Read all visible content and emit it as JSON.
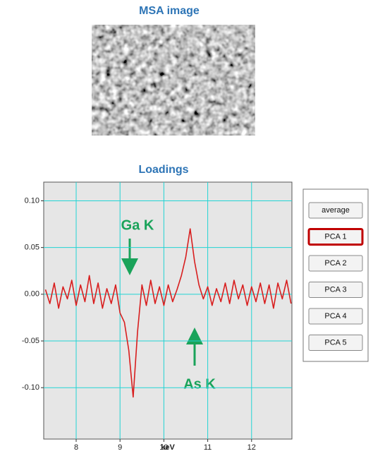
{
  "image_title": "MSA image",
  "chart_data": {
    "type": "line",
    "title": "Loadings",
    "x_label": "keV",
    "x": [
      7.3,
      7.4,
      7.5,
      7.6,
      7.7,
      7.8,
      7.9,
      8.0,
      8.1,
      8.2,
      8.3,
      8.4,
      8.5,
      8.6,
      8.7,
      8.8,
      8.9,
      9.0,
      9.1,
      9.2,
      9.3,
      9.4,
      9.5,
      9.6,
      9.7,
      9.8,
      9.9,
      10.0,
      10.1,
      10.2,
      10.3,
      10.4,
      10.5,
      10.6,
      10.7,
      10.8,
      10.9,
      11.0,
      11.1,
      11.2,
      11.3,
      11.4,
      11.5,
      11.6,
      11.7,
      11.8,
      11.9,
      12.0,
      12.1,
      12.2,
      12.3,
      12.4,
      12.5,
      12.6,
      12.7,
      12.8,
      12.9
    ],
    "values": [
      0.005,
      -0.01,
      0.012,
      -0.015,
      0.008,
      -0.005,
      0.015,
      -0.012,
      0.01,
      -0.008,
      0.02,
      -0.01,
      0.012,
      -0.015,
      0.006,
      -0.01,
      0.01,
      -0.02,
      -0.03,
      -0.06,
      -0.11,
      -0.04,
      0.01,
      -0.012,
      0.015,
      -0.01,
      0.008,
      -0.012,
      0.01,
      -0.008,
      0.005,
      0.02,
      0.04,
      0.07,
      0.035,
      0.01,
      -0.005,
      0.008,
      -0.012,
      0.006,
      -0.008,
      0.012,
      -0.01,
      0.015,
      -0.005,
      0.01,
      -0.012,
      0.008,
      -0.008,
      0.012,
      -0.01,
      0.01,
      -0.015,
      0.012,
      -0.005,
      0.015,
      -0.01
    ],
    "color": "#d81e1e",
    "xlim": [
      7.26,
      12.92
    ],
    "xticks": [
      8,
      9,
      10,
      11,
      12
    ],
    "ylim": [
      -0.155,
      0.12
    ],
    "yticks": [
      {
        "value": 0.1,
        "label": "0.10"
      },
      0.05,
      {
        "value": 0,
        "label": "0.00"
      },
      -0.05,
      {
        "value": -0.1,
        "label": "-0.10"
      }
    ],
    "grid": true,
    "annotations": [
      "Ga K",
      "As K"
    ]
  },
  "buttons": [
    "average",
    "PCA 1",
    "PCA 2",
    "PCA 3",
    "PCA 4",
    "PCA 5"
  ],
  "selected_index": 1
}
